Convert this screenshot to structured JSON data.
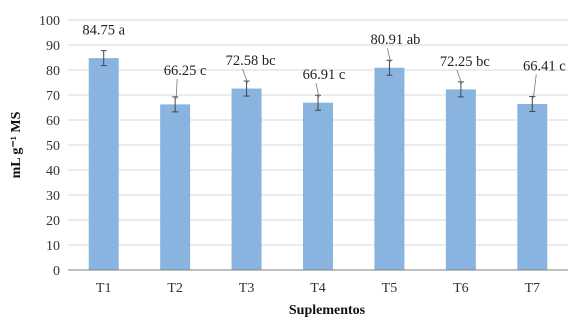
{
  "chart_data": {
    "type": "bar",
    "categories": [
      "T1",
      "T2",
      "T3",
      "T4",
      "T5",
      "T6",
      "T7"
    ],
    "values": [
      84.75,
      66.25,
      72.58,
      66.91,
      80.91,
      72.25,
      66.41
    ],
    "error": [
      3,
      3,
      3,
      3,
      3,
      3,
      3
    ],
    "data_labels": [
      "84.75 a",
      "66.25 c",
      "72.58 bc",
      "66.91 c",
      "80.91 ab",
      "72.25 bc",
      "66.41 c"
    ],
    "title": "",
    "xlabel": "Suplementos",
    "ylabel": "mL g⁻¹ MS",
    "ylim": [
      0,
      100
    ],
    "yticks": [
      0,
      10,
      20,
      30,
      40,
      50,
      60,
      70,
      80,
      90,
      100
    ],
    "grid": true,
    "bar_color": "#8ab4e0",
    "grid_color": "#d9d9d9",
    "axis_color": "#7f7f7f"
  }
}
